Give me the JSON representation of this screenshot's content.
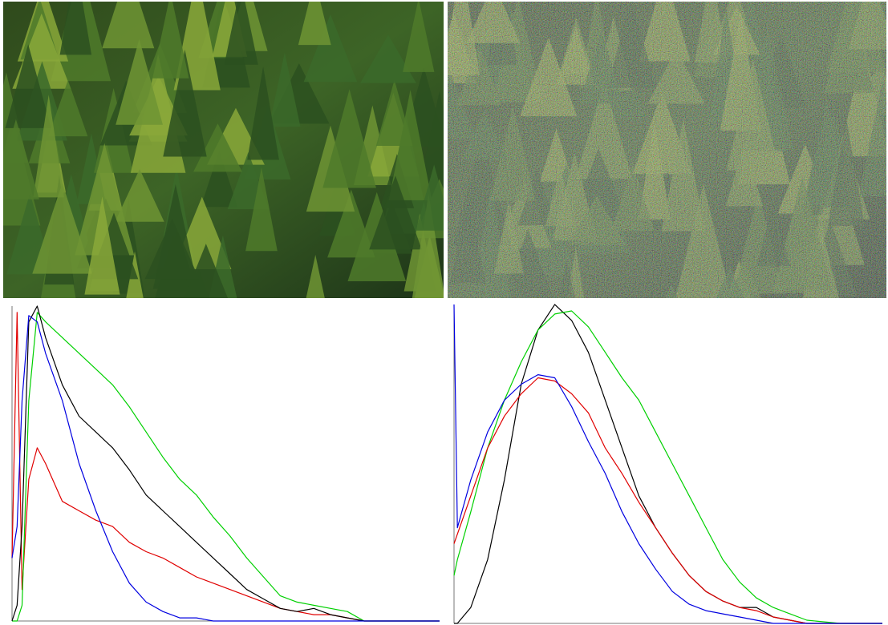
{
  "chart_data": [
    {
      "type": "line",
      "x": [
        0,
        3,
        6,
        10,
        15,
        20,
        30,
        40,
        50,
        60,
        70,
        80,
        90,
        100,
        110,
        120,
        130,
        140,
        150,
        160,
        170,
        180,
        190,
        200,
        210,
        220,
        230,
        240,
        255
      ],
      "xlim": [
        0,
        255
      ],
      "ylim": [
        0,
        1
      ],
      "series": [
        {
          "color": "#e00000",
          "values": [
            0.2,
            0.98,
            0.1,
            0.45,
            0.55,
            0.5,
            0.38,
            0.35,
            0.32,
            0.3,
            0.25,
            0.22,
            0.2,
            0.17,
            0.14,
            0.12,
            0.1,
            0.08,
            0.06,
            0.04,
            0.03,
            0.02,
            0.02,
            0.01,
            0,
            0,
            0,
            0,
            0
          ]
        },
        {
          "color": "#00d000",
          "values": [
            0,
            0,
            0.05,
            0.7,
            0.98,
            0.95,
            0.9,
            0.85,
            0.8,
            0.75,
            0.68,
            0.6,
            0.52,
            0.45,
            0.4,
            0.33,
            0.27,
            0.2,
            0.14,
            0.08,
            0.06,
            0.05,
            0.04,
            0.03,
            0,
            0,
            0,
            0,
            0
          ]
        },
        {
          "color": "#000000",
          "values": [
            0,
            0.05,
            0.3,
            0.95,
            1.0,
            0.9,
            0.75,
            0.65,
            0.6,
            0.55,
            0.48,
            0.4,
            0.35,
            0.3,
            0.25,
            0.2,
            0.15,
            0.1,
            0.07,
            0.04,
            0.03,
            0.04,
            0.02,
            0.01,
            0,
            0,
            0,
            0,
            0
          ]
        },
        {
          "color": "#0000e0",
          "values": [
            0.2,
            0.3,
            0.7,
            0.97,
            0.95,
            0.85,
            0.7,
            0.5,
            0.35,
            0.22,
            0.12,
            0.06,
            0.03,
            0.01,
            0.01,
            0,
            0,
            0,
            0,
            0,
            0,
            0,
            0,
            0,
            0,
            0,
            0,
            0,
            0
          ]
        }
      ]
    },
    {
      "type": "line",
      "x": [
        0,
        2,
        10,
        20,
        30,
        40,
        50,
        60,
        70,
        80,
        90,
        100,
        110,
        120,
        130,
        140,
        150,
        160,
        170,
        180,
        190,
        200,
        210,
        230,
        255
      ],
      "xlim": [
        0,
        255
      ],
      "ylim": [
        0,
        1
      ],
      "series": [
        {
          "color": "#000000",
          "values": [
            0,
            0,
            0.05,
            0.2,
            0.45,
            0.75,
            0.92,
            1.0,
            0.95,
            0.85,
            0.7,
            0.55,
            0.4,
            0.3,
            0.22,
            0.15,
            0.1,
            0.07,
            0.05,
            0.05,
            0.02,
            0.01,
            0,
            0,
            0
          ]
        },
        {
          "color": "#00d000",
          "values": [
            0.15,
            0.2,
            0.35,
            0.55,
            0.7,
            0.82,
            0.92,
            0.97,
            0.98,
            0.93,
            0.85,
            0.77,
            0.7,
            0.6,
            0.5,
            0.4,
            0.3,
            0.2,
            0.13,
            0.08,
            0.05,
            0.03,
            0.01,
            0,
            0
          ]
        },
        {
          "color": "#e00000",
          "values": [
            0.25,
            0.28,
            0.4,
            0.55,
            0.65,
            0.72,
            0.77,
            0.76,
            0.72,
            0.66,
            0.55,
            0.47,
            0.38,
            0.3,
            0.22,
            0.15,
            0.1,
            0.07,
            0.05,
            0.04,
            0.02,
            0.01,
            0,
            0,
            0
          ]
        },
        {
          "color": "#0000e0",
          "values": [
            1.0,
            0.3,
            0.45,
            0.6,
            0.7,
            0.75,
            0.78,
            0.77,
            0.68,
            0.57,
            0.47,
            0.35,
            0.25,
            0.17,
            0.1,
            0.06,
            0.04,
            0.03,
            0.02,
            0.01,
            0,
            0,
            0,
            0,
            0
          ]
        }
      ]
    }
  ]
}
